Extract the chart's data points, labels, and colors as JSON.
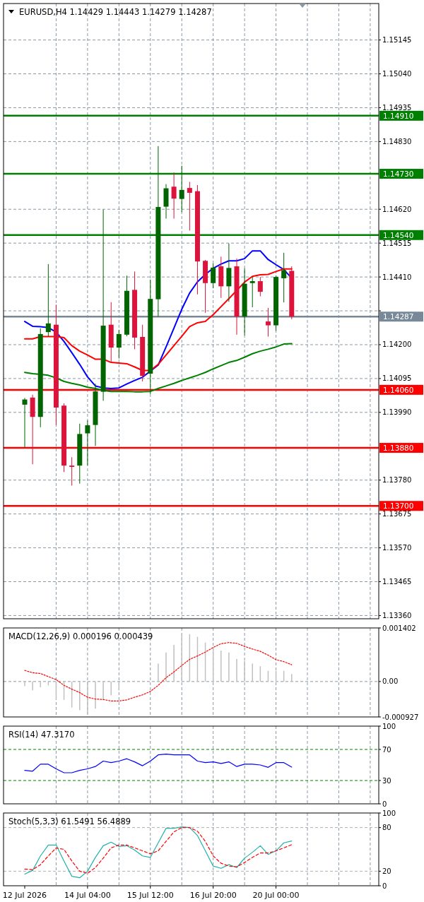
{
  "chart_data": [
    {
      "type": "candlestick",
      "title": "EURUSD,H4 1.14429 1.14443 1.14279 1.14287",
      "tick_labels": "y",
      "grid": true,
      "categories": [
        null,
        null,
        null,
        null,
        null,
        null,
        null,
        null,
        null,
        null,
        null,
        null,
        null,
        null,
        null,
        null,
        null,
        null,
        null,
        null,
        null,
        null,
        null,
        null,
        null,
        null,
        null,
        null,
        null,
        null,
        null,
        null,
        null,
        null,
        null,
        null,
        null,
        null,
        null,
        null,
        null,
        null,
        null,
        null,
        null,
        null
      ],
      "ohlc": [
        [
          1.14014,
          1.14035,
          1.13881,
          1.1403
        ],
        [
          1.14036,
          1.14045,
          1.13829,
          1.13976
        ],
        [
          1.13976,
          1.14251,
          1.13944,
          1.14233
        ],
        [
          1.14239,
          1.1445,
          1.14226,
          1.14266
        ],
        [
          1.14262,
          1.14324,
          1.13951,
          1.14005
        ],
        [
          1.14011,
          1.14018,
          1.13805,
          1.13825
        ],
        [
          1.13825,
          1.13851,
          1.13763,
          1.13821
        ],
        [
          1.13825,
          1.13955,
          1.13769,
          1.13923
        ],
        [
          1.13925,
          1.13965,
          1.13826,
          1.1395
        ],
        [
          1.13951,
          1.14079,
          1.13886,
          1.14055
        ],
        [
          1.14054,
          1.14619,
          1.14026,
          1.14259
        ],
        [
          1.14262,
          1.14332,
          1.14145,
          1.14191
        ],
        [
          1.14191,
          1.14246,
          1.14157,
          1.14233
        ],
        [
          1.14231,
          1.14414,
          1.14226,
          1.14367
        ],
        [
          1.1437,
          1.14427,
          1.14186,
          1.14222
        ],
        [
          1.14224,
          1.14262,
          1.14086,
          1.14103
        ],
        [
          1.1411,
          1.14402,
          1.14047,
          1.14342
        ],
        [
          1.14341,
          1.14816,
          1.14287,
          1.14627
        ],
        [
          1.14628,
          1.14698,
          1.14591,
          1.14685
        ],
        [
          1.1469,
          1.14734,
          1.14591,
          1.14653
        ],
        [
          1.14652,
          1.14755,
          1.14611,
          1.1468
        ],
        [
          1.14686,
          1.14705,
          1.14554,
          1.14671
        ],
        [
          1.14676,
          1.14695,
          1.14356,
          1.14458
        ],
        [
          1.1446,
          1.14463,
          1.14299,
          1.14391
        ],
        [
          1.14391,
          1.14452,
          1.14375,
          1.14439
        ],
        [
          1.14443,
          1.14473,
          1.14345,
          1.14381
        ],
        [
          1.14381,
          1.14514,
          1.14333,
          1.14438
        ],
        [
          1.14443,
          1.14467,
          1.14231,
          1.14287
        ],
        [
          1.14287,
          1.14437,
          1.14229,
          1.14389
        ],
        [
          1.14391,
          1.1441,
          1.14316,
          1.14397
        ],
        [
          1.14397,
          1.1441,
          1.1435,
          1.14364
        ],
        [
          1.14272,
          1.14314,
          1.14225,
          1.1426
        ],
        [
          1.1426,
          1.14414,
          1.14243,
          1.1441
        ],
        [
          1.14406,
          1.14485,
          1.14331,
          1.14431
        ],
        [
          1.14429,
          1.14443,
          1.14279,
          1.14287
        ],
        null,
        null,
        null,
        null,
        null,
        null,
        null,
        null,
        null,
        null,
        null
      ],
      "colors": [
        "#006400",
        "#dc143c",
        "#006400",
        "#006400",
        "#dc143c",
        "#dc143c",
        "#dc143c",
        "#006400",
        "#006400",
        "#006400",
        "#006400",
        "#dc143c",
        "#006400",
        "#006400",
        "#dc143c",
        "#dc143c",
        "#006400",
        "#006400",
        "#006400",
        "#dc143c",
        "#006400",
        "#dc143c",
        "#dc143c",
        "#dc143c",
        "#006400",
        "#dc143c",
        "#006400",
        "#dc143c",
        "#006400",
        "#006400",
        "#dc143c",
        "#dc143c",
        "#006400",
        "#006400",
        "#dc143c",
        null,
        null,
        null,
        null,
        null,
        null,
        null,
        null,
        null,
        null,
        null
      ],
      "series": [
        {
          "type": "line",
          "color": "#0000ff",
          "values": [
            1.14272,
            1.14257,
            1.14256,
            1.14253,
            1.14239,
            1.1421,
            1.14175,
            1.14139,
            1.141,
            1.14072,
            1.14066,
            1.14064,
            1.14066,
            1.14078,
            1.14089,
            1.14099,
            1.14118,
            1.14137,
            1.14193,
            1.14251,
            1.1431,
            1.1436,
            1.14395,
            1.14418,
            1.14437,
            1.1445,
            1.1446,
            1.1446,
            1.14467,
            1.14491,
            1.14491,
            1.14464,
            1.14448,
            1.14433,
            1.14406,
            null,
            null,
            null,
            null,
            null,
            null,
            null,
            null,
            null,
            null,
            null
          ]
        },
        {
          "type": "line",
          "color": "#ff0000",
          "values": [
            1.14218,
            1.14218,
            1.14225,
            1.14225,
            1.14225,
            1.14222,
            1.14197,
            1.1418,
            1.14168,
            1.14155,
            1.14155,
            1.14145,
            1.14143,
            1.14141,
            1.14131,
            1.1412,
            1.1412,
            1.14139,
            1.14168,
            1.14197,
            1.14226,
            1.14256,
            1.14268,
            1.14272,
            1.14293,
            1.14318,
            1.14343,
            1.14368,
            1.14394,
            1.14412,
            1.14417,
            1.14418,
            1.14427,
            1.14435,
            1.14435,
            null,
            null,
            null,
            null,
            null,
            null,
            null,
            null,
            null,
            null,
            null
          ]
        },
        {
          "type": "line",
          "color": "#008000",
          "values": [
            1.14114,
            1.1411,
            1.14108,
            1.14105,
            1.14097,
            1.14086,
            1.1408,
            1.14075,
            1.14068,
            1.14064,
            1.14058,
            1.14055,
            1.14055,
            1.14055,
            1.14054,
            1.14054,
            1.14055,
            1.14064,
            1.14072,
            1.1408,
            1.14089,
            1.14097,
            1.14105,
            1.14114,
            1.14125,
            1.14135,
            1.14145,
            1.14151,
            1.14161,
            1.14172,
            1.1418,
            1.14186,
            1.14193,
            1.14202,
            1.14203,
            null,
            null,
            null,
            null,
            null,
            null,
            null,
            null,
            null,
            null,
            null
          ]
        }
      ],
      "ylim": [
        1.1335,
        1.15258
      ],
      "yticks": [
        1.15145,
        {
          "value": 1.1504,
          "label": "1.15040"
        },
        1.14935,
        {
          "value": 1.1483,
          "label": "1.14830"
        },
        {
          "value": 1.1462,
          "label": "1.14620"
        },
        1.14515,
        {
          "value": 1.1441,
          "label": "1.14410"
        },
        {
          "value": 1.14305,
          "label": null
        },
        {
          "value": 1.142,
          "label": "1.14200"
        },
        1.14095,
        {
          "value": 1.1399,
          "label": "1.13990"
        },
        {
          "value": 1.1378,
          "label": "1.13780"
        },
        1.13675,
        {
          "value": 1.1357,
          "label": "1.13570"
        },
        1.13465,
        {
          "value": 1.1336,
          "label": "1.13360"
        }
      ],
      "ref_lines": [
        {
          "axis": "y",
          "value": 1.1491,
          "label": "1.14910",
          "color": "#008000"
        },
        {
          "axis": "y",
          "value": 1.1473,
          "label": "1.14730",
          "color": "#008000"
        },
        {
          "axis": "y",
          "value": 1.1454,
          "label": "1.14540",
          "color": "#008000"
        },
        {
          "axis": "y",
          "value": 1.14287,
          "label": "1.14287",
          "color": "#778899"
        },
        {
          "axis": "y",
          "value": 1.1406,
          "label": "1.14060",
          "color": "#ff0000"
        },
        {
          "axis": "y",
          "value": 1.1388,
          "label": "1.13880",
          "color": "#ff0000"
        },
        {
          "axis": "y",
          "value": 1.137,
          "label": "1.13700",
          "color": "#ff0000"
        }
      ]
    },
    {
      "type": "bar",
      "title": "MACD(12,26,9) 0.000196 0.000439",
      "tick_labels": "y",
      "grid": "x",
      "categories": [
        null,
        null,
        null,
        null,
        null,
        null,
        null,
        null,
        null,
        null,
        null,
        null,
        null,
        null,
        null,
        null,
        null,
        null,
        null,
        null,
        null,
        null,
        null,
        null,
        null,
        null,
        null,
        null,
        null,
        null,
        null,
        null,
        null,
        null,
        null,
        null,
        null,
        null,
        null,
        null,
        null,
        null,
        null,
        null,
        null,
        null
      ],
      "series": [
        {
          "type": "bar",
          "color": "#c0c0c0",
          "values": [
            -0.00012,
            -0.00023,
            -0.00015,
            -0.0001,
            -0.00047,
            -0.00048,
            -0.00068,
            -0.00075,
            -0.00085,
            -0.00071,
            -0.00048,
            -0.00036,
            -0.00023,
            0,
            0,
            0,
            0,
            0.00047,
            0.00076,
            0.00096,
            0.00124,
            0.00124,
            0.00117,
            0.00102,
            0.0009,
            0.00081,
            0.00076,
            0.00059,
            0.00054,
            0.00047,
            0.0004,
            0.00028,
            0.00028,
            0.00028,
            0.000196,
            null,
            null,
            null,
            null,
            null,
            null,
            null,
            null,
            null,
            null,
            null
          ]
        },
        {
          "type": "line",
          "color": "#ff0000",
          "line_style": "dotted",
          "values": [
            0.00029,
            0.00023,
            0.00021,
            0.00013,
            5e-05,
            -0.0001,
            -0.0002,
            -0.00029,
            -0.00041,
            -0.00046,
            -0.00047,
            -0.00051,
            -0.00051,
            -0.00048,
            -0.00041,
            -0.00035,
            -0.00026,
            -0.0001,
            0.0001,
            0.00025,
            0.00042,
            0.00058,
            0.00067,
            0.00077,
            0.00089,
            0.00099,
            0.00102,
            0.001,
            0.00092,
            0.00085,
            0.00079,
            0.00069,
            0.00057,
            0.00052,
            0.000439,
            null,
            null,
            null,
            null,
            null,
            null,
            null,
            null,
            null,
            null,
            null
          ]
        }
      ],
      "ylim": [
        -0.000927,
        0.001402
      ],
      "yticks": [
        0.001402,
        {
          "value": 0,
          "label": "0.00"
        },
        -0.000927
      ],
      "ref_lines": [
        {
          "axis": "y",
          "value": 0,
          "color": "#8a98a6",
          "line_style": "dashed"
        }
      ]
    },
    {
      "type": "line",
      "title": "RSI(14) 47.3170",
      "tick_labels": "y",
      "grid": "x",
      "categories": [
        null,
        null,
        null,
        null,
        null,
        null,
        null,
        null,
        null,
        null,
        null,
        null,
        null,
        null,
        null,
        null,
        null,
        null,
        null,
        null,
        null,
        null,
        null,
        null,
        null,
        null,
        null,
        null,
        null,
        null,
        null,
        null,
        null,
        null,
        null,
        null,
        null,
        null,
        null,
        null,
        null,
        null,
        null,
        null,
        null,
        null
      ],
      "series": [
        {
          "color": "#0000ff",
          "values": [
            43,
            42,
            51,
            51,
            45,
            40,
            40,
            43,
            45,
            48,
            55,
            53,
            55,
            58,
            54,
            49,
            55,
            63,
            64,
            63,
            63,
            63,
            55,
            53,
            54,
            52,
            54,
            48,
            51,
            51,
            50,
            47,
            53,
            53,
            47.317,
            null,
            null,
            null,
            null,
            null,
            null,
            null,
            null,
            null,
            null,
            null
          ]
        }
      ],
      "ylim": [
        0,
        100
      ],
      "yticks": [
        100,
        70,
        30,
        0
      ],
      "ref_lines": [
        {
          "axis": "y",
          "value": 70,
          "color": "#008000",
          "line_style": "dashed"
        },
        {
          "axis": "y",
          "value": 30,
          "color": "#008000",
          "line_style": "dashed"
        }
      ]
    },
    {
      "type": "line",
      "title": "Stoch(5,3,3) 61.5491 56.4889",
      "grid": "x",
      "categories": [
        "12 Jul 2026",
        null,
        null,
        null,
        null,
        null,
        null,
        null,
        "14 Jul 04:00",
        null,
        null,
        null,
        null,
        null,
        null,
        null,
        "15 Jul 12:00",
        null,
        null,
        null,
        null,
        null,
        null,
        null,
        "16 Jul 20:00",
        null,
        null,
        null,
        null,
        null,
        null,
        null,
        "20 Jul 00:00",
        null,
        null,
        null,
        null,
        null,
        null,
        null,
        null,
        null,
        null,
        null,
        null,
        null
      ],
      "series": [
        {
          "color": "#20b2aa",
          "values": [
            16,
            21,
            41,
            56,
            56,
            34,
            13,
            11,
            20,
            39,
            55,
            60,
            54,
            55,
            49,
            41,
            39,
            59,
            79,
            79,
            81,
            80,
            69,
            48,
            27,
            24,
            29,
            25,
            38,
            46,
            55,
            43,
            48,
            59,
            61.5491,
            null,
            null,
            null,
            null,
            null,
            null,
            null,
            null,
            null,
            null,
            null
          ]
        },
        {
          "color": "#ff0000",
          "line_style": "dashed",
          "values": [
            23,
            22,
            29,
            41,
            52,
            50,
            34,
            20,
            17,
            25,
            38,
            52,
            56,
            56,
            52,
            48,
            44,
            48,
            61,
            74,
            80,
            80,
            75,
            61,
            41,
            31,
            27,
            26,
            32,
            39,
            45,
            45,
            48,
            52,
            56.4889,
            null,
            null,
            null,
            null,
            null,
            null,
            null,
            null,
            null,
            null,
            null
          ]
        }
      ],
      "ylim": [
        0,
        100
      ],
      "yticks": [
        100,
        80,
        20,
        0
      ],
      "ref_lines": [
        {
          "axis": "y",
          "value": 80,
          "color": "#b0b0b0",
          "line_style": "dashed"
        },
        {
          "axis": "y",
          "value": 20,
          "color": "#b0b0b0",
          "line_style": "dashed"
        }
      ]
    }
  ]
}
